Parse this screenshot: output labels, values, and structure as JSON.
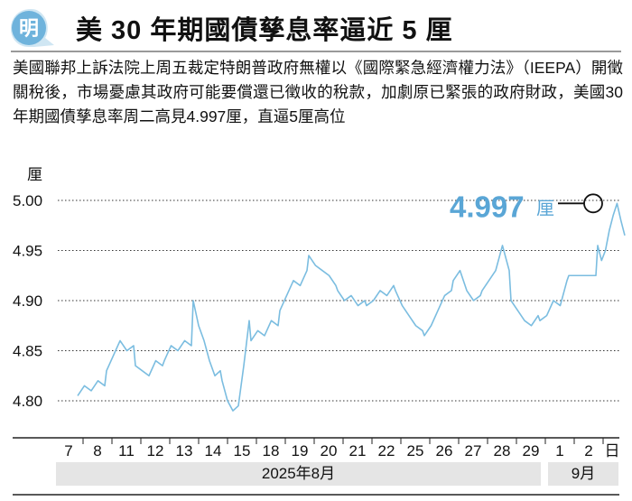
{
  "header": {
    "logo_text": "明",
    "title": "美 30 年期國債孳息率逼近 5 厘"
  },
  "body_text": "美國聯邦上訴法院上周五裁定特朗普政府無權以《國際緊急經濟權力法》（IEEPA）開徵關稅後，市場憂慮其政府可能要償還已徵收的稅款，加劇原已緊張的政府財政，美國30年期國債孳息率周二高見4.997厘，直逼5厘高位",
  "colors": {
    "line": "#7bbde0",
    "accent": "#5aa6d6",
    "band": "#e5e5e5"
  },
  "chart_data": {
    "type": "line",
    "title": "美 30 年期國債孳息率逼近 5 厘",
    "ylabel": "厘",
    "xlabel": "日",
    "ylim": [
      4.78,
      5.02
    ],
    "yticks": [
      "5.00",
      "4.95",
      "4.90",
      "4.85",
      "4.80"
    ],
    "ytick_values": [
      5.0,
      4.95,
      4.9,
      4.85,
      4.8
    ],
    "categories": [
      "7",
      "8",
      "11",
      "12",
      "13",
      "14",
      "15",
      "18",
      "19",
      "20",
      "21",
      "22",
      "25",
      "26",
      "27",
      "28",
      "29",
      "1",
      "2"
    ],
    "months": [
      {
        "label": "2025年8月",
        "days": 17
      },
      {
        "label": "9月",
        "days": 2
      }
    ],
    "series": [
      {
        "name": "30Y yield",
        "values_per_day": [
          [
            4.805,
            4.815,
            4.81,
            4.82,
            4.815
          ],
          [
            4.83,
            4.845,
            4.86,
            4.85,
            4.855
          ],
          [
            4.835,
            4.83,
            4.825,
            4.84,
            4.835
          ],
          [
            4.84,
            4.855,
            4.85,
            4.86,
            4.855
          ],
          [
            4.9,
            4.875,
            4.86,
            4.84,
            4.825,
            4.83
          ],
          [
            4.82,
            4.8,
            4.79,
            4.795,
            4.835,
            4.88
          ],
          [
            4.86,
            4.87,
            4.865,
            4.88,
            4.875
          ],
          [
            4.89,
            4.905,
            4.92,
            4.915,
            4.93
          ],
          [
            4.945,
            4.935,
            4.93,
            4.925,
            4.915
          ],
          [
            4.91,
            4.9,
            4.905,
            4.895,
            4.9
          ],
          [
            4.895,
            4.9,
            4.91,
            4.905,
            4.915
          ],
          [
            4.91,
            4.895,
            4.885,
            4.875,
            4.87
          ],
          [
            4.865,
            4.875,
            4.89,
            4.905,
            4.91
          ],
          [
            4.92,
            4.93,
            4.91,
            4.9,
            4.905
          ],
          [
            4.91,
            4.92,
            4.93,
            4.955,
            4.93
          ],
          [
            4.9,
            4.89,
            4.88,
            4.875,
            4.885
          ],
          [
            4.88,
            4.885,
            4.9,
            4.895,
            4.92
          ],
          [
            4.925,
            4.925
          ],
          [
            4.955,
            4.94,
            4.95,
            4.97,
            4.985,
            4.997,
            4.98,
            4.965
          ]
        ]
      }
    ],
    "annotation": {
      "value": "4.997",
      "unit": "厘"
    }
  }
}
